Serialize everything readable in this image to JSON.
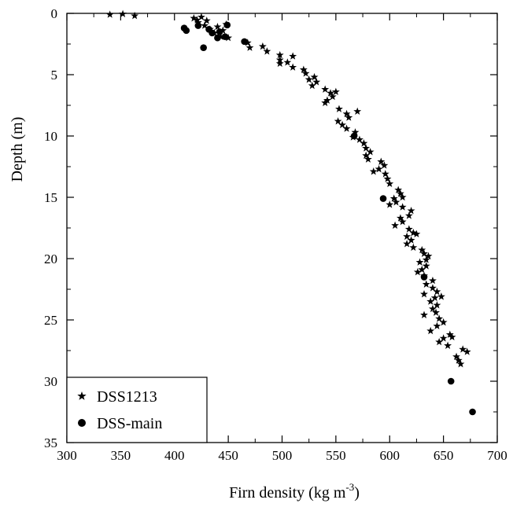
{
  "chart_data": {
    "type": "scatter",
    "xlabel": "Firn density (kg m",
    "xlabel_sup": "-3",
    "xlabel_end": ")",
    "ylabel": "Depth (m)",
    "xlim": [
      300,
      700
    ],
    "ylim": [
      35,
      0
    ],
    "y_inverted": true,
    "xticks": [
      "300",
      "350",
      "400",
      "450",
      "500",
      "550",
      "600",
      "650",
      "700"
    ],
    "yticks": [
      "0",
      "5",
      "10",
      "15",
      "20",
      "25",
      "30",
      "35"
    ],
    "grid": false,
    "legend_position": "bottom-left",
    "series": [
      {
        "name": "DSS1213",
        "marker": "star",
        "color": "#000000",
        "points": [
          [
            340,
            0.1
          ],
          [
            352,
            0.05
          ],
          [
            363,
            0.2
          ],
          [
            418,
            0.4
          ],
          [
            421,
            0.55
          ],
          [
            425,
            0.3
          ],
          [
            430,
            0.6
          ],
          [
            422,
            0.75
          ],
          [
            428,
            1.0
          ],
          [
            433,
            1.3
          ],
          [
            440,
            1.1
          ],
          [
            445,
            1.4
          ],
          [
            448,
            0.9
          ],
          [
            437,
            1.6
          ],
          [
            443,
            1.9
          ],
          [
            450,
            2.0
          ],
          [
            468,
            2.4
          ],
          [
            470,
            2.8
          ],
          [
            482,
            2.7
          ],
          [
            486,
            3.1
          ],
          [
            498,
            3.4
          ],
          [
            510,
            3.5
          ],
          [
            498,
            3.8
          ],
          [
            505,
            4.0
          ],
          [
            498,
            4.1
          ],
          [
            510,
            4.4
          ],
          [
            520,
            4.6
          ],
          [
            522,
            4.9
          ],
          [
            530,
            5.2
          ],
          [
            525,
            5.4
          ],
          [
            532,
            5.6
          ],
          [
            528,
            5.9
          ],
          [
            540,
            6.2
          ],
          [
            545,
            6.5
          ],
          [
            550,
            6.4
          ],
          [
            547,
            6.8
          ],
          [
            542,
            7.1
          ],
          [
            540,
            7.3
          ],
          [
            553,
            7.8
          ],
          [
            560,
            8.2
          ],
          [
            570,
            8.0
          ],
          [
            562,
            8.5
          ],
          [
            552,
            8.8
          ],
          [
            556,
            9.1
          ],
          [
            560,
            9.4
          ],
          [
            568,
            9.7
          ],
          [
            566,
            10.1
          ],
          [
            572,
            10.3
          ],
          [
            576,
            10.6
          ],
          [
            578,
            11.0
          ],
          [
            582,
            11.3
          ],
          [
            578,
            11.6
          ],
          [
            580,
            11.9
          ],
          [
            592,
            12.1
          ],
          [
            595,
            12.4
          ],
          [
            590,
            12.7
          ],
          [
            585,
            12.9
          ],
          [
            596,
            13.1
          ],
          [
            598,
            13.5
          ],
          [
            600,
            13.9
          ],
          [
            608,
            14.4
          ],
          [
            610,
            14.7
          ],
          [
            604,
            15.1
          ],
          [
            612,
            15.0
          ],
          [
            606,
            15.4
          ],
          [
            600,
            15.6
          ],
          [
            612,
            15.8
          ],
          [
            620,
            16.1
          ],
          [
            618,
            16.5
          ],
          [
            610,
            16.7
          ],
          [
            612,
            17.0
          ],
          [
            605,
            17.3
          ],
          [
            618,
            17.6
          ],
          [
            622,
            17.9
          ],
          [
            616,
            18.2
          ],
          [
            625,
            18.0
          ],
          [
            620,
            18.5
          ],
          [
            616,
            18.8
          ],
          [
            622,
            19.1
          ],
          [
            630,
            19.3
          ],
          [
            632,
            19.6
          ],
          [
            636,
            19.8
          ],
          [
            634,
            20.1
          ],
          [
            628,
            20.3
          ],
          [
            634,
            20.6
          ],
          [
            630,
            20.9
          ],
          [
            626,
            21.1
          ],
          [
            632,
            21.4
          ],
          [
            640,
            21.8
          ],
          [
            634,
            22.1
          ],
          [
            640,
            22.4
          ],
          [
            644,
            22.7
          ],
          [
            632,
            22.9
          ],
          [
            642,
            23.2
          ],
          [
            648,
            23.1
          ],
          [
            638,
            23.5
          ],
          [
            644,
            23.8
          ],
          [
            640,
            24.1
          ],
          [
            643,
            24.4
          ],
          [
            632,
            24.6
          ],
          [
            646,
            24.9
          ],
          [
            650,
            25.2
          ],
          [
            644,
            25.5
          ],
          [
            638,
            25.9
          ],
          [
            656,
            26.2
          ],
          [
            650,
            26.5
          ],
          [
            658,
            26.4
          ],
          [
            646,
            26.8
          ],
          [
            654,
            27.1
          ],
          [
            668,
            27.4
          ],
          [
            672,
            27.6
          ],
          [
            662,
            28.0
          ],
          [
            664,
            28.3
          ],
          [
            666,
            28.6
          ]
        ]
      },
      {
        "name": "DSS-main",
        "marker": "circle",
        "color": "#000000",
        "points": [
          [
            409,
            1.2
          ],
          [
            411,
            1.4
          ],
          [
            422,
            1.0
          ],
          [
            432,
            1.3
          ],
          [
            435,
            1.6
          ],
          [
            442,
            1.5
          ],
          [
            440,
            2.0
          ],
          [
            447,
            1.9
          ],
          [
            449,
            0.95
          ],
          [
            465,
            2.3
          ],
          [
            427,
            2.8
          ],
          [
            567,
            10.0
          ],
          [
            594,
            15.1
          ],
          [
            632,
            21.5
          ],
          [
            657,
            30.0
          ],
          [
            677,
            32.5
          ]
        ]
      }
    ]
  }
}
